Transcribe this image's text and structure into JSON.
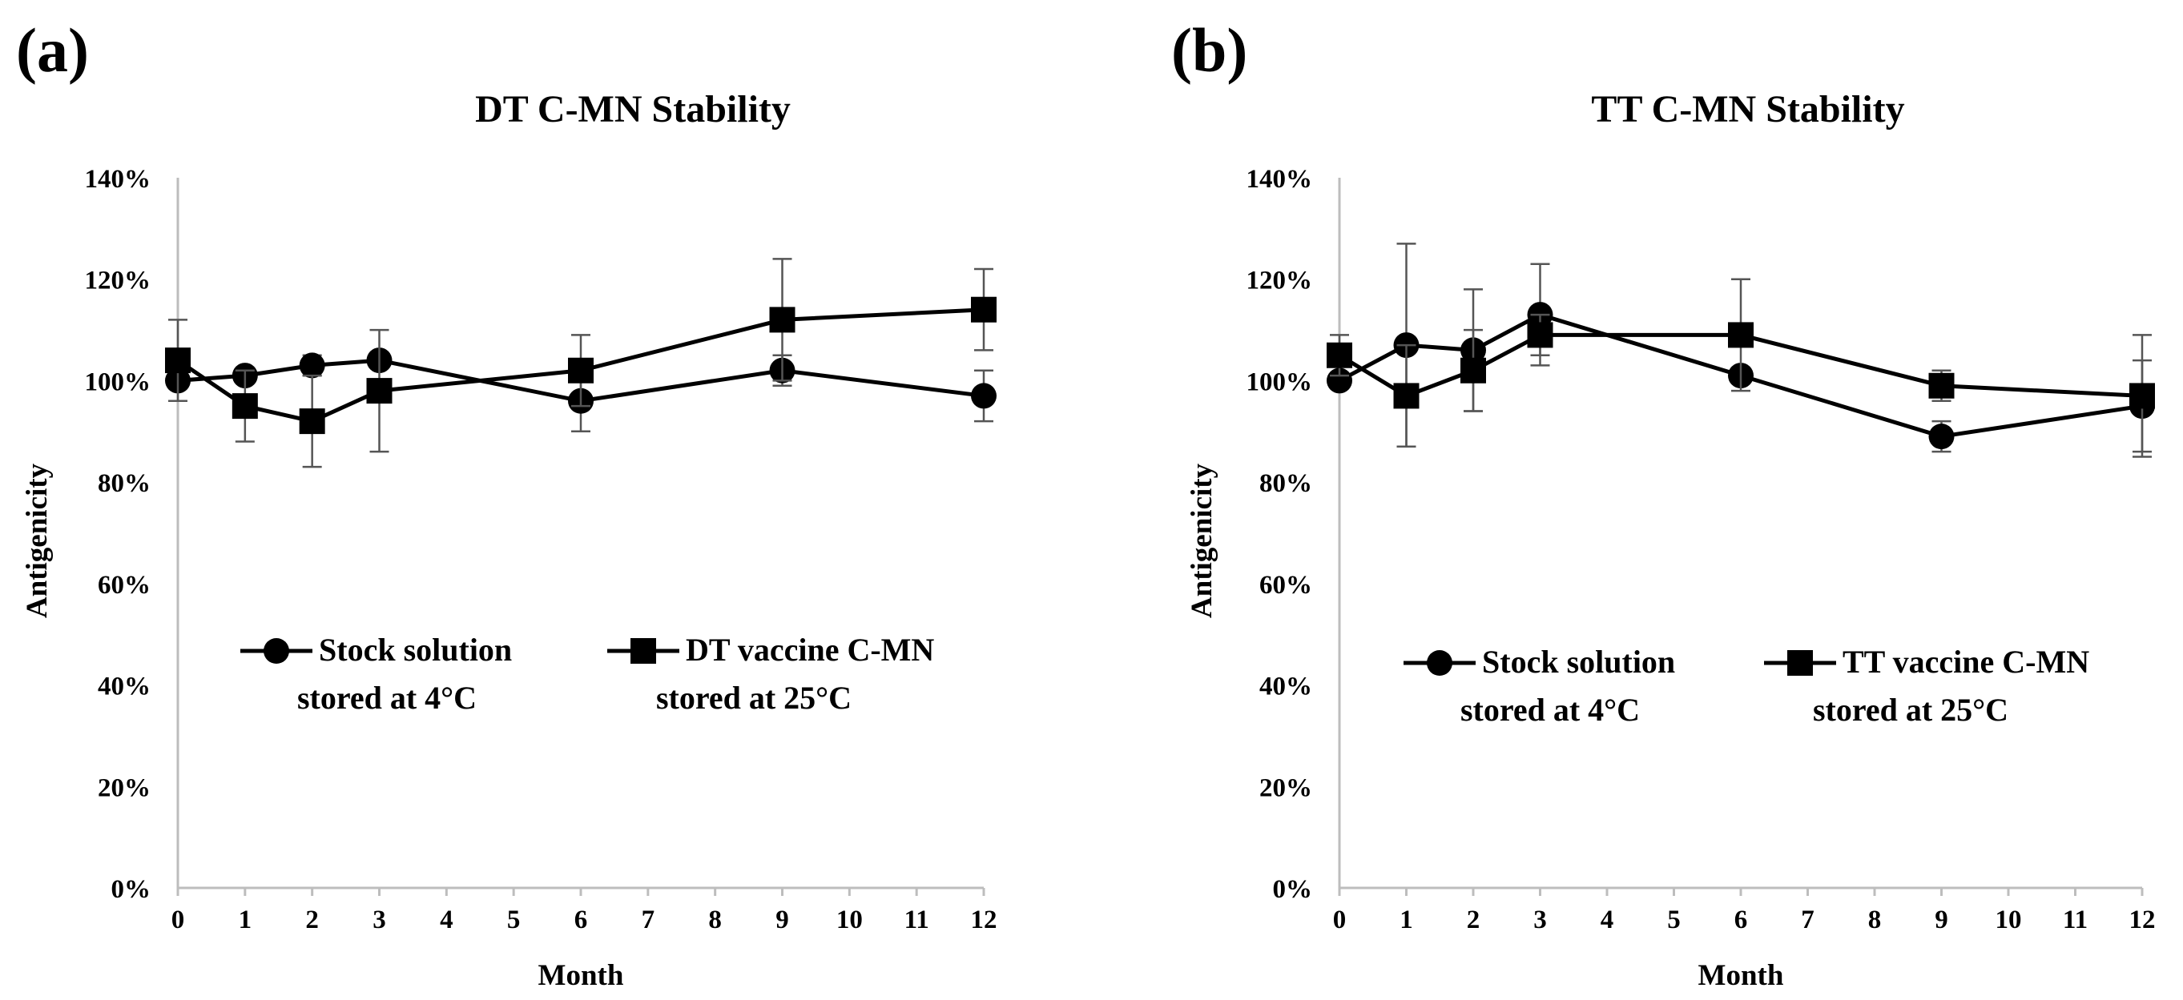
{
  "panels": [
    {
      "label": "(a)"
    },
    {
      "label": "(b)"
    }
  ],
  "chart_data": [
    {
      "type": "line",
      "title": "DT C-MN Stability",
      "xlabel": "Month",
      "ylabel": "Antigenicity",
      "xlim": [
        0,
        12
      ],
      "ylim": [
        0,
        140
      ],
      "x_ticks": [
        "0",
        "1",
        "2",
        "3",
        "4",
        "5",
        "6",
        "7",
        "8",
        "9",
        "10",
        "11",
        "12"
      ],
      "y_ticks": [
        "0%",
        "20%",
        "40%",
        "60%",
        "80%",
        "100%",
        "120%",
        "140%"
      ],
      "grid": false,
      "legend_position": "middle",
      "series": [
        {
          "name": "Stock solution stored at 4°C",
          "legend_lines": [
            "Stock solution",
            "stored at 4°C"
          ],
          "marker": "circle",
          "x": [
            0,
            1,
            2,
            3,
            6,
            9,
            12
          ],
          "y": [
            100,
            101,
            103,
            104,
            96,
            102,
            97
          ],
          "err": [
            0,
            0,
            2,
            0,
            6,
            3,
            5
          ]
        },
        {
          "name": "DT vaccine C-MN stored at 25°C",
          "legend_lines": [
            "DT vaccine C-MN",
            "stored at 25°C"
          ],
          "marker": "square",
          "x": [
            0,
            1,
            2,
            3,
            6,
            9,
            12
          ],
          "y": [
            104,
            95,
            92,
            98,
            102,
            112,
            114
          ],
          "err": [
            8,
            7,
            9,
            12,
            7,
            12,
            8
          ]
        }
      ]
    },
    {
      "type": "line",
      "title": "TT C-MN Stability",
      "xlabel": "Month",
      "ylabel": "Antigenicity",
      "xlim": [
        0,
        12
      ],
      "ylim": [
        0,
        140
      ],
      "x_ticks": [
        "0",
        "1",
        "2",
        "3",
        "4",
        "5",
        "6",
        "7",
        "8",
        "9",
        "10",
        "11",
        "12"
      ],
      "y_ticks": [
        "0%",
        "20%",
        "40%",
        "60%",
        "80%",
        "100%",
        "120%",
        "140%"
      ],
      "grid": false,
      "legend_position": "middle",
      "series": [
        {
          "name": "Stock solution stored at 4°C",
          "legend_lines": [
            "Stock solution",
            "stored at 4°C"
          ],
          "marker": "circle",
          "x": [
            0,
            1,
            2,
            3,
            6,
            9,
            12
          ],
          "y": [
            100,
            107,
            106,
            113,
            101,
            89,
            95
          ],
          "err": [
            0,
            20,
            12,
            10,
            0,
            3,
            9
          ]
        },
        {
          "name": "TT vaccine C-MN stored at 25°C",
          "legend_lines": [
            "TT vaccine C-MN",
            "stored at 25°C"
          ],
          "marker": "square",
          "x": [
            0,
            1,
            2,
            3,
            6,
            9,
            12
          ],
          "y": [
            105,
            97,
            102,
            109,
            109,
            99,
            97
          ],
          "err": [
            4,
            10,
            8,
            4,
            11,
            3,
            12
          ]
        }
      ]
    }
  ]
}
